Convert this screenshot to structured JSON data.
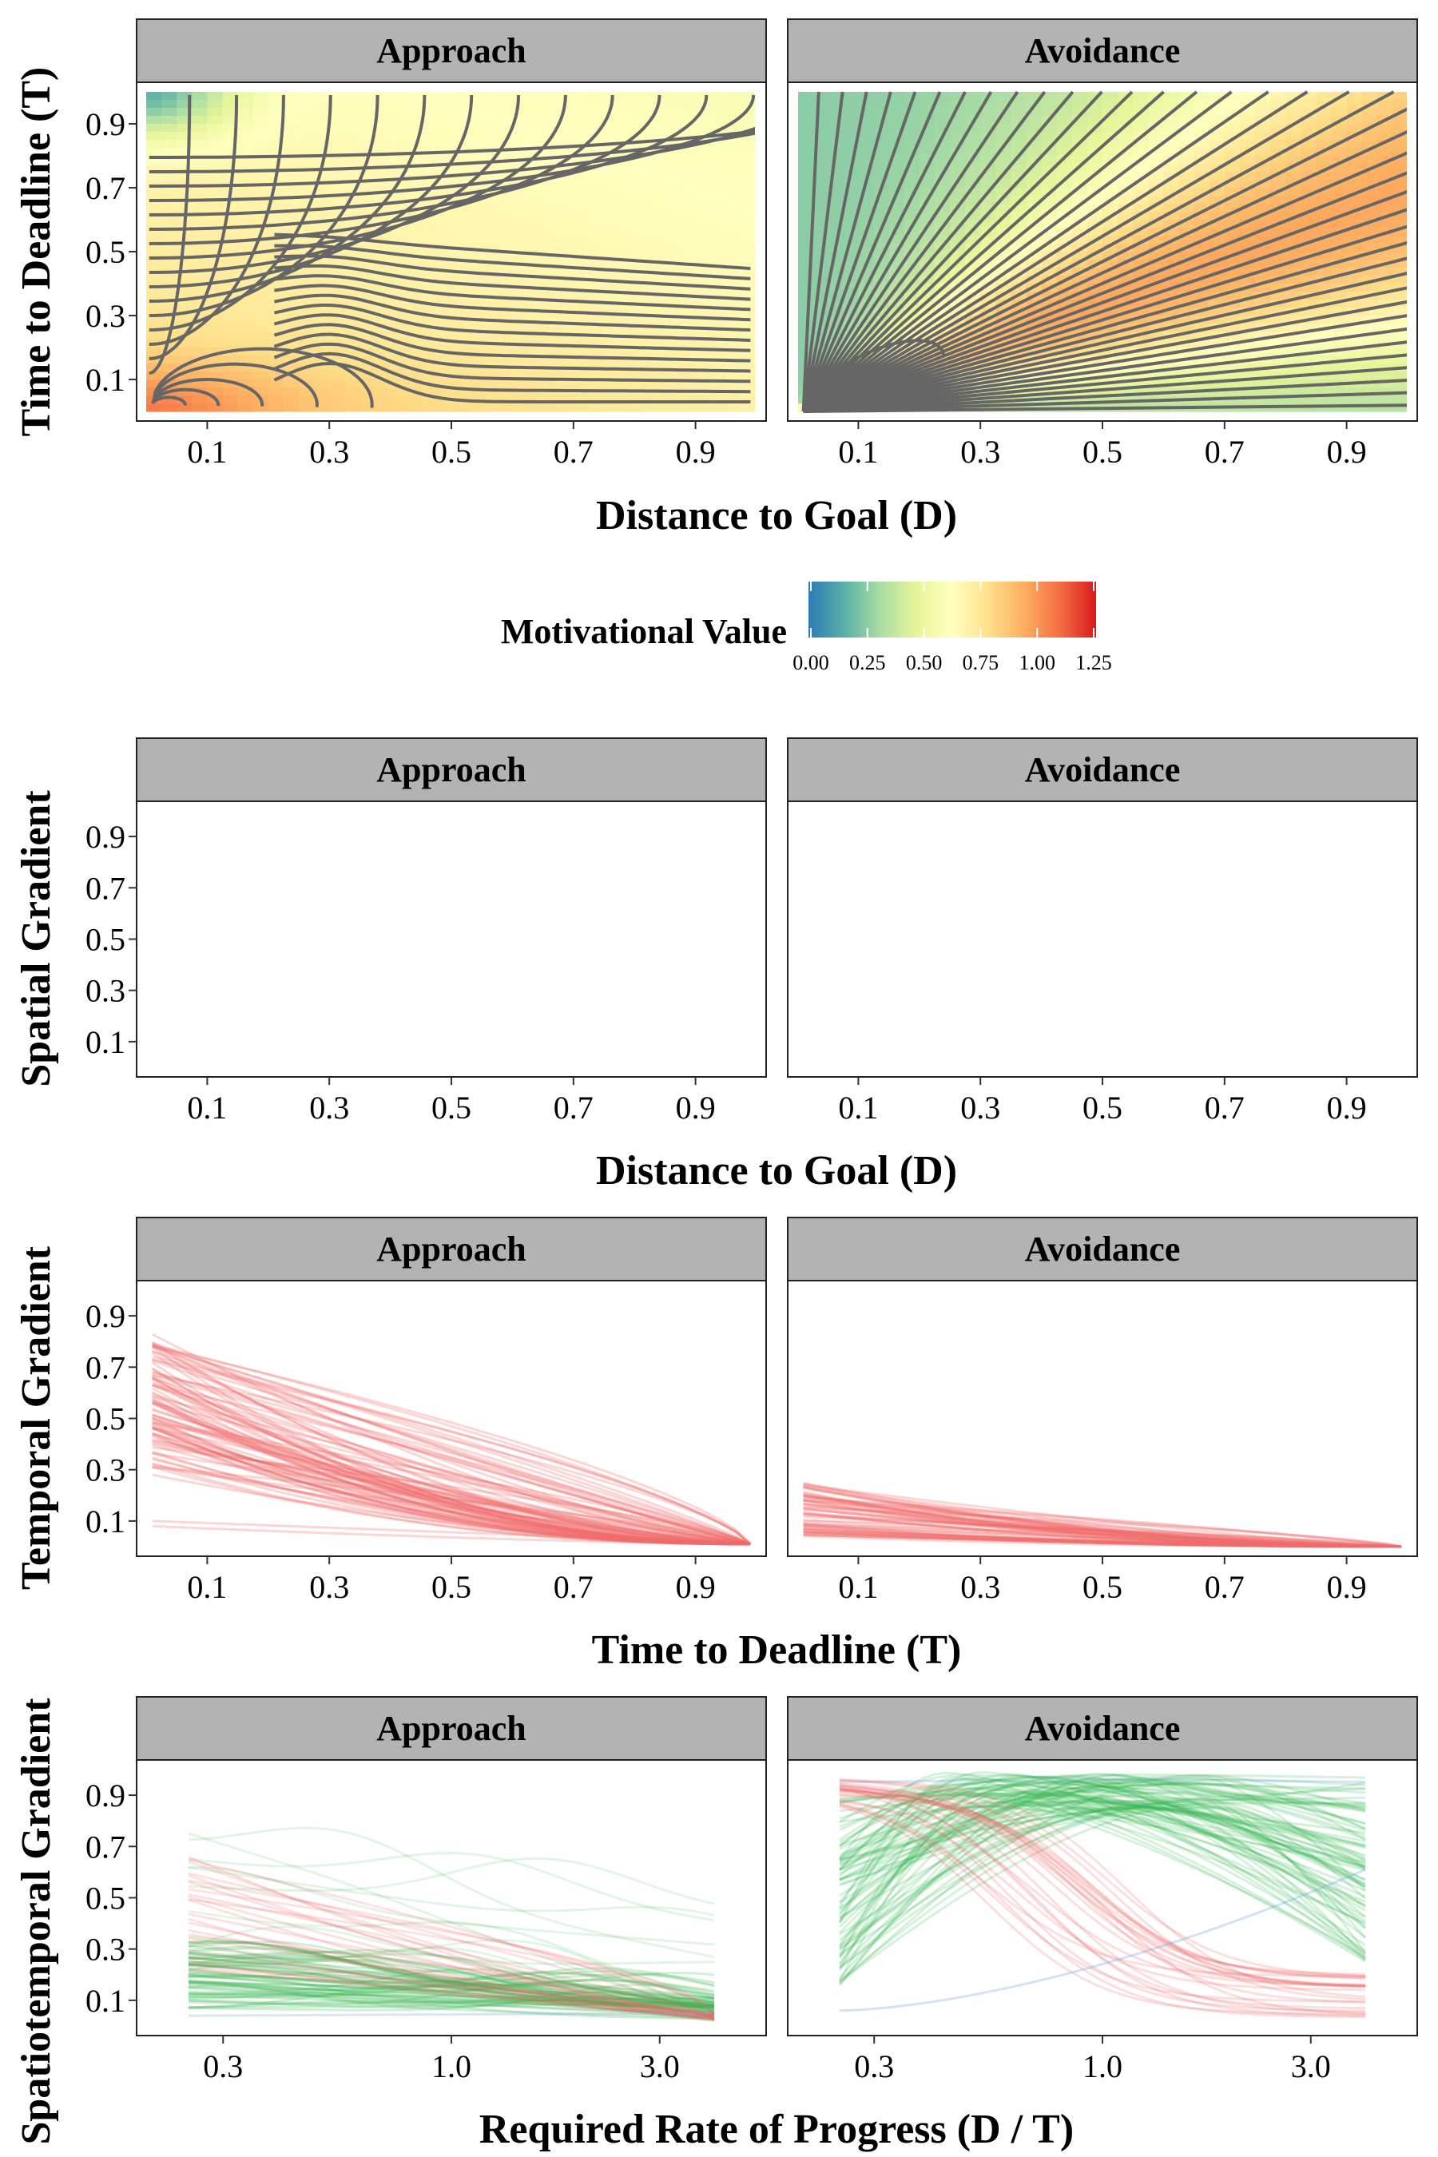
{
  "colors": {
    "strip_fill": "#b3b3b3",
    "panel_border": "#222222",
    "contour_line": "#666666",
    "temporal_line": "#ef6b6b",
    "approach_line_green": "#2fb24a",
    "decrease_line_red": "#ef6b6b",
    "faint_blue": "#7fa8e6"
  },
  "colorbar": {
    "title": "Motivational Value",
    "ticks": [
      "0.00",
      "0.25",
      "0.50",
      "0.75",
      "1.00",
      "1.25"
    ],
    "min": 0,
    "max": 1.25,
    "stops": [
      "#2c7bb6",
      "#58b0a6",
      "#abdda4",
      "#e6f598",
      "#ffffbf",
      "#fee08b",
      "#fdae61",
      "#f46d43",
      "#d7191c"
    ]
  },
  "chart_data": [
    {
      "id": "contour",
      "type": "heatmap",
      "facets": [
        "Approach",
        "Avoidance"
      ],
      "xlabel": "Distance to Goal (D)",
      "ylabel": "Time to Deadline (T)",
      "xticks": [
        "0.1",
        "0.3",
        "0.5",
        "0.7",
        "0.9"
      ],
      "yticks": [
        "0.1",
        "0.3",
        "0.5",
        "0.7",
        "0.9"
      ],
      "xlim": [
        0,
        1
      ],
      "ylim": [
        0,
        1
      ],
      "fill": "Motivational Value",
      "contour_lines": true,
      "grid": false
    },
    {
      "id": "spatial",
      "type": "line",
      "facets": [
        "Approach",
        "Avoidance"
      ],
      "xlabel": "Distance to Goal (D)",
      "ylabel": "Spatial Gradient",
      "xticks": [
        "0.1",
        "0.3",
        "0.5",
        "0.7",
        "0.9"
      ],
      "yticks": [
        "0.1",
        "0.3",
        "0.5",
        "0.7",
        "0.9"
      ],
      "xlim": [
        0,
        1
      ],
      "ylim": [
        0,
        1
      ],
      "series": [],
      "grid": false
    },
    {
      "id": "temporal",
      "type": "line",
      "facets": [
        "Approach",
        "Avoidance"
      ],
      "xlabel": "Time to Deadline (T)",
      "ylabel": "Temporal Gradient",
      "xticks": [
        "0.1",
        "0.3",
        "0.5",
        "0.7",
        "0.9"
      ],
      "yticks": [
        "0.1",
        "0.3",
        "0.5",
        "0.7",
        "0.9"
      ],
      "xlim": [
        0,
        1
      ],
      "ylim": [
        0,
        1
      ],
      "approach": {
        "start_range": [
          0.28,
          0.83
        ],
        "end_value": 0.01,
        "outliers_start": [
          0.08,
          0.1
        ]
      },
      "avoidance": {
        "start_range": [
          0.04,
          0.25
        ],
        "end_value": 0.0
      },
      "grid": false
    },
    {
      "id": "spatiotemporal",
      "type": "line",
      "facets": [
        "Approach",
        "Avoidance"
      ],
      "xlabel": "Required Rate of Progress (D / T)",
      "ylabel": "Spatiotemporal Gradient",
      "xticks": [
        "0.3",
        "1.0",
        "3.0"
      ],
      "xtick_values": [
        0.3,
        1.0,
        3.0
      ],
      "xscale": "log",
      "xlim": [
        0.2,
        5.0
      ],
      "yticks": [
        "0.1",
        "0.3",
        "0.5",
        "0.7",
        "0.9"
      ],
      "ylim": [
        0,
        1
      ],
      "approach": {
        "green_start": [
          0.05,
          0.75
        ],
        "green_end": [
          0.02,
          0.45
        ],
        "red_start": [
          0.2,
          0.67
        ],
        "red_end": [
          0.02,
          0.05
        ]
      },
      "avoidance": {
        "green_start": [
          0.15,
          0.9
        ],
        "green_peak": [
          0.85,
          0.99
        ],
        "green_end": [
          0.25,
          0.97
        ],
        "red_start": [
          0.9,
          0.98
        ],
        "red_end": [
          0.03,
          0.2
        ]
      },
      "grid": false
    }
  ]
}
